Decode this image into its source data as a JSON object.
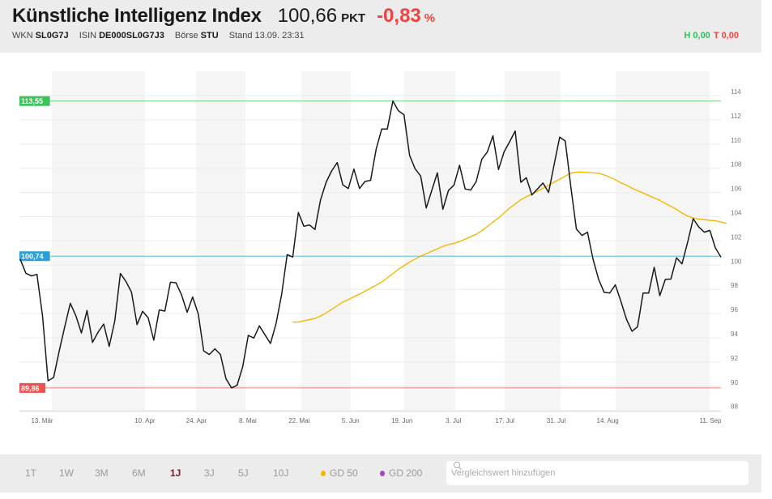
{
  "header": {
    "title": "Künstliche Intelligenz Index",
    "price": "100,66",
    "unit": "PKT",
    "change": "-0,83",
    "change_unit": "%",
    "wkn_label": "WKN",
    "wkn": "SL0G7J",
    "isin_label": "ISIN",
    "isin": "DE000SL0G7J3",
    "boerse_label": "Börse",
    "boerse": "STU",
    "stand": "Stand 13.09. 23:31",
    "high": "H 0,00",
    "low": "T 0,00",
    "colors": {
      "up": "#2fbf5a",
      "down": "#f04343"
    }
  },
  "chart_data": {
    "type": "line",
    "y_ticks": [
      "114",
      "112",
      "110",
      "108",
      "106",
      "104",
      "102",
      "100",
      "98",
      "96",
      "94",
      "92",
      "90",
      "88"
    ],
    "ylim": [
      88,
      114
    ],
    "x_ticks": [
      "13. Mär",
      "10. Apr",
      "24. Apr",
      "8. Mai",
      "22. Mai",
      "5. Jun",
      "19. Jun",
      "3. Jul",
      "17. Jul",
      "31. Jul",
      "14. Aug",
      "11. Sep"
    ],
    "grid": true,
    "reference_lines": [
      {
        "label": "113,55",
        "value": 113.55,
        "color": "#3cc45a"
      },
      {
        "label": "100,74",
        "value": 100.74,
        "color": "#2a9fd8"
      },
      {
        "label": "89,86",
        "value": 89.86,
        "color": "#ef5350"
      }
    ],
    "series": [
      {
        "name": "Künstliche Intelligenz Index",
        "color": "#1a1a1a",
        "values": [
          100.49,
          99.33,
          99.11,
          99.24,
          95.81,
          90.45,
          90.72,
          92.91,
          94.91,
          96.85,
          95.81,
          94.4,
          96.25,
          93.62,
          94.47,
          95.14,
          93.29,
          95.4,
          99.31,
          98.66,
          97.77,
          95.09,
          96.19,
          95.65,
          93.8,
          96.3,
          96.21,
          98.59,
          98.55,
          97.55,
          96.1,
          97.37,
          95.98,
          92.91,
          92.62,
          93.09,
          92.62,
          90.61,
          89.86,
          90.08,
          91.61,
          94.2,
          93.98,
          94.98,
          94.25,
          93.53,
          95.18,
          97.59,
          100.87,
          100.67,
          104.35,
          103.21,
          103.32,
          102.94,
          105.39,
          106.84,
          107.78,
          108.47,
          106.62,
          106.33,
          107.93,
          106.33,
          106.91,
          107.0,
          109.59,
          111.24,
          111.24,
          113.55,
          112.75,
          112.42,
          109.07,
          107.96,
          107.36,
          104.72,
          106.17,
          107.62,
          104.61,
          106.17,
          106.62,
          108.25,
          106.29,
          106.2,
          106.91,
          108.74,
          109.36,
          110.68,
          107.89,
          109.36,
          110.19,
          111.08,
          106.84,
          107.22,
          105.8,
          106.29,
          106.78,
          106.0,
          108.29,
          110.57,
          110.25,
          106.51,
          102.99,
          102.45,
          102.72,
          100.49,
          98.82,
          97.75,
          97.7,
          98.37,
          97.03,
          95.54,
          94.54,
          94.91,
          97.7,
          97.7,
          99.82,
          97.48,
          98.82,
          98.85,
          100.6,
          100.11,
          101.87,
          103.83,
          103.16,
          102.72,
          102.87,
          101.42,
          100.66
        ]
      },
      {
        "name": "GD 50",
        "color": "#f5b800",
        "values": [
          null,
          null,
          null,
          null,
          null,
          null,
          null,
          null,
          null,
          null,
          null,
          null,
          null,
          null,
          null,
          null,
          null,
          null,
          null,
          null,
          null,
          null,
          null,
          null,
          null,
          null,
          null,
          null,
          null,
          null,
          null,
          null,
          null,
          null,
          null,
          null,
          null,
          null,
          null,
          null,
          null,
          null,
          null,
          null,
          null,
          null,
          null,
          null,
          null,
          95.3,
          95.3,
          95.4,
          95.5,
          95.6,
          95.8,
          96.05,
          96.35,
          96.65,
          96.95,
          97.15,
          97.4,
          97.6,
          97.85,
          98.1,
          98.35,
          98.6,
          98.95,
          99.3,
          99.65,
          99.95,
          100.25,
          100.5,
          100.75,
          100.95,
          101.15,
          101.35,
          101.55,
          101.7,
          101.8,
          101.95,
          102.15,
          102.35,
          102.55,
          102.85,
          103.2,
          103.55,
          103.9,
          104.3,
          104.7,
          105.05,
          105.4,
          105.65,
          105.85,
          106.1,
          106.35,
          106.6,
          106.85,
          107.1,
          107.35,
          107.6,
          107.68,
          107.68,
          107.65,
          107.62,
          107.58,
          107.45,
          107.25,
          107.05,
          106.8,
          106.6,
          106.35,
          106.15,
          105.95,
          105.75,
          105.55,
          105.35,
          105.1,
          104.85,
          104.6,
          104.3,
          104.05,
          103.9,
          103.8,
          103.75,
          103.7,
          103.67,
          103.55,
          103.45
        ]
      }
    ]
  },
  "footer": {
    "ranges": [
      {
        "label": "1T",
        "active": false
      },
      {
        "label": "1W",
        "active": false
      },
      {
        "label": "3M",
        "active": false
      },
      {
        "label": "6M",
        "active": false
      },
      {
        "label": "1J",
        "active": true
      },
      {
        "label": "3J",
        "active": false
      },
      {
        "label": "5J",
        "active": false
      },
      {
        "label": "10J",
        "active": false
      }
    ],
    "indicators": [
      {
        "label": "GD 50",
        "color": "#f5b800"
      },
      {
        "label": "GD 200",
        "color": "#a445c4"
      }
    ],
    "search_placeholder": "Vergleichswert hinzufügen",
    "search_icon": "search-icon"
  }
}
